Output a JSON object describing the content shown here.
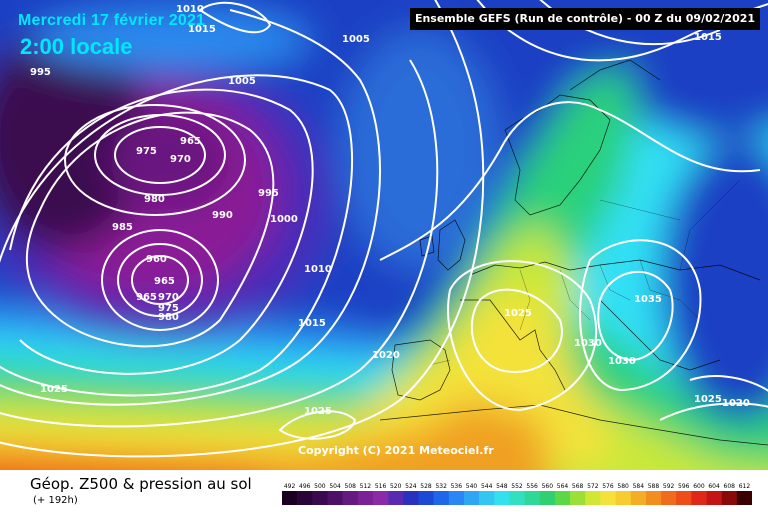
{
  "header": {
    "date": "Mercredi 17 février 2021",
    "time": "2:00 locale",
    "model": "Ensemble GEFS  (Run de contrôle)  -  00 Z du 09/02/2021"
  },
  "copyright": "Copyright (C) 2021 Meteociel.fr",
  "footer": {
    "title": "Géop. Z500 & pression au sol",
    "subtitle": "(+ 192h)"
  },
  "isobar_labels": [
    {
      "text": "1010"
    },
    {
      "text": "1015"
    },
    {
      "text": "1005"
    },
    {
      "text": "1015"
    },
    {
      "text": "995"
    },
    {
      "text": "1005"
    },
    {
      "text": "965"
    },
    {
      "text": "975"
    },
    {
      "text": "970"
    },
    {
      "text": "980"
    },
    {
      "text": "995"
    },
    {
      "text": "990"
    },
    {
      "text": "985"
    },
    {
      "text": "1000"
    },
    {
      "text": "960"
    },
    {
      "text": "965"
    },
    {
      "text": "965"
    },
    {
      "text": "970"
    },
    {
      "text": "975"
    },
    {
      "text": "980"
    },
    {
      "text": "1010"
    },
    {
      "text": "1015"
    },
    {
      "text": "1025"
    },
    {
      "text": "1020"
    },
    {
      "text": "1025"
    },
    {
      "text": "1025"
    },
    {
      "text": "1030"
    },
    {
      "text": "1030"
    },
    {
      "text": "1035"
    },
    {
      "text": "1025"
    },
    {
      "text": "1020"
    }
  ],
  "colors": {
    "dark_purple": "#3a0f4f",
    "purple": "#8a1c96",
    "blue": "#1d3fc4",
    "light_blue": "#2a8cf0",
    "cyan": "#33e0f5",
    "green": "#2bd07a",
    "yellow_green": "#c8e83a",
    "yellow": "#f4e23a",
    "orange": "#f0a020",
    "red": "#f05818"
  },
  "scale": {
    "labels": [
      "492",
      "496",
      "500",
      "504",
      "508",
      "512",
      "516",
      "520",
      "524",
      "528",
      "532",
      "536",
      "540",
      "544",
      "548",
      "552",
      "556",
      "560",
      "564",
      "568",
      "572",
      "576",
      "580",
      "584",
      "588",
      "592",
      "596",
      "600",
      "604",
      "608",
      "612"
    ],
    "colors": [
      "#1a0020",
      "#2a0538",
      "#3a0a4e",
      "#4e0f66",
      "#641a80",
      "#7a2198",
      "#8a2aa8",
      "#5a2ab0",
      "#2a30c0",
      "#1c4ad6",
      "#1e66ea",
      "#2a86f2",
      "#2fa6f4",
      "#33c6f2",
      "#33e0f0",
      "#30e0c0",
      "#2ed898",
      "#30d070",
      "#5ad848",
      "#9ae038",
      "#d2e636",
      "#f4e23a",
      "#f6cc30",
      "#f4ae26",
      "#f28e20",
      "#f06c1c",
      "#ee4c18",
      "#e02818",
      "#c41414",
      "#8a0a0a",
      "#3a0000"
    ]
  }
}
